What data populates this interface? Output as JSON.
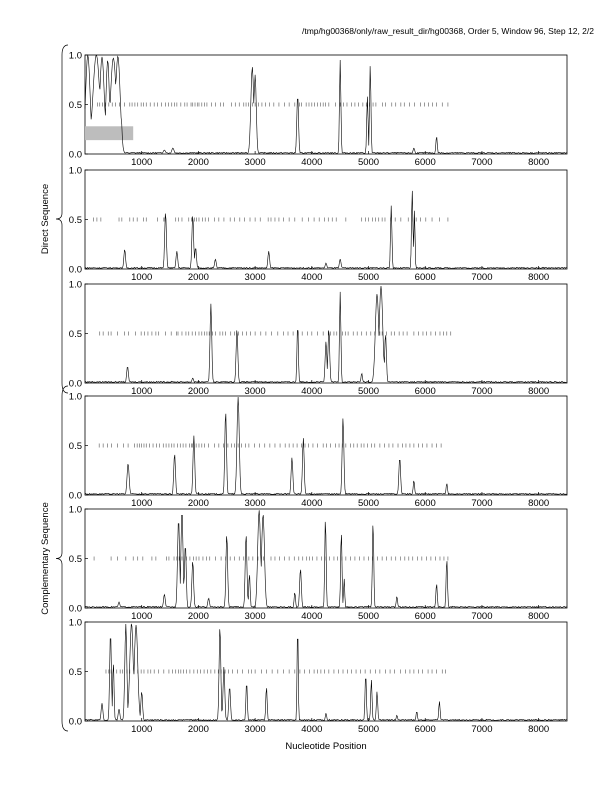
{
  "header": "/tmp/hg00368/only/raw_result_dir/hg00368, Order 5, Window 96, Step 12, 2/2",
  "chart_data": {
    "type": "line",
    "xlabel": "Nucleotide Position",
    "group_labels": [
      "Direct Sequence",
      "Complementary Sequence"
    ],
    "x_ticks": [
      1000,
      2000,
      3000,
      4000,
      5000,
      6000,
      7000,
      8000
    ],
    "y_ticks": [
      0.0,
      0.5,
      1.0
    ],
    "y_tick_labels": [
      "0.0",
      "0.5",
      "1.0"
    ],
    "xlim": [
      0,
      8500
    ],
    "ylim": [
      0,
      1
    ],
    "panels": [
      {
        "group": "Direct Sequence",
        "peaks": [
          [
            50,
            1.0,
            40
          ],
          [
            200,
            1.0,
            60
          ],
          [
            300,
            0.98,
            40
          ],
          [
            400,
            0.95,
            30
          ],
          [
            500,
            0.97,
            50
          ],
          [
            580,
            0.99,
            40
          ],
          [
            640,
            0.35,
            15
          ],
          [
            1400,
            0.04,
            20
          ],
          [
            1550,
            0.06,
            20
          ],
          [
            2950,
            0.88,
            25
          ],
          [
            3000,
            0.8,
            20
          ],
          [
            3750,
            0.6,
            15
          ],
          [
            4500,
            0.95,
            12
          ],
          [
            4980,
            0.58,
            12
          ],
          [
            5030,
            0.9,
            12
          ],
          [
            5800,
            0.06,
            15
          ],
          [
            6200,
            0.18,
            12
          ]
        ],
        "marks": [
          220,
          260,
          310,
          360,
          420,
          480,
          540,
          610,
          700,
          790,
          830,
          880,
          930,
          990,
          1030,
          1080,
          1150,
          1220,
          1280,
          1350,
          1420,
          1470,
          1530,
          1580,
          1620,
          1690,
          1760,
          1800,
          1870,
          1900,
          1940,
          1980,
          2010,
          2060,
          2110,
          2150,
          2230,
          2300,
          2390,
          2440,
          2580,
          2650,
          2720,
          2800,
          2840,
          2880,
          2950,
          3000,
          3060,
          3120,
          3180,
          3250,
          3330,
          3420,
          3520,
          3600,
          3700,
          3780,
          3820,
          3900,
          3950,
          4000,
          4050,
          4100,
          4150,
          4200,
          4240,
          4300,
          4420,
          4500,
          4560,
          4620,
          4700,
          4760,
          4820,
          4900,
          4960,
          5020,
          5080,
          5130,
          5250,
          5300,
          5410,
          5480,
          5570,
          5630,
          5720,
          5810,
          5920,
          5990,
          6060,
          6130,
          6200,
          6300,
          6400
        ],
        "highlight": {
          "x0": 0,
          "x1": 850,
          "y0": 0.14,
          "y1": 0.28
        }
      },
      {
        "group": "Direct Sequence",
        "peaks": [
          [
            700,
            0.2,
            15
          ],
          [
            1420,
            0.58,
            15
          ],
          [
            1620,
            0.18,
            15
          ],
          [
            1900,
            0.55,
            15
          ],
          [
            1950,
            0.22,
            15
          ],
          [
            2300,
            0.1,
            15
          ],
          [
            3240,
            0.18,
            15
          ],
          [
            4250,
            0.06,
            15
          ],
          [
            4500,
            0.1,
            15
          ],
          [
            5400,
            0.64,
            12
          ],
          [
            5770,
            0.8,
            12
          ],
          [
            5810,
            0.6,
            10
          ]
        ],
        "marks": [
          150,
          210,
          280,
          600,
          650,
          790,
          850,
          920,
          1030,
          1080,
          1280,
          1390,
          1410,
          1600,
          1650,
          1710,
          1830,
          1880,
          1930,
          1970,
          2010,
          2070,
          2120,
          2180,
          2280,
          2360,
          2450,
          2560,
          2640,
          2730,
          2810,
          2910,
          3000,
          3090,
          3230,
          3280,
          3350,
          3420,
          3500,
          3600,
          3700,
          3830,
          3940,
          4040,
          4130,
          4220,
          4290,
          4360,
          4430,
          4600,
          4880,
          4950,
          5000,
          5070,
          5120,
          5180,
          5240,
          5290,
          5390,
          5470,
          5570,
          5700,
          5780,
          5840,
          5920,
          6010,
          6120,
          6250,
          6400
        ],
        "highlight": null
      },
      {
        "group": "Direct Sequence",
        "peaks": [
          [
            750,
            0.17,
            15
          ],
          [
            1900,
            0.05,
            15
          ],
          [
            2220,
            0.8,
            15
          ],
          [
            2680,
            0.55,
            15
          ],
          [
            3750,
            0.6,
            12
          ],
          [
            4250,
            0.42,
            15
          ],
          [
            4300,
            0.55,
            15
          ],
          [
            4500,
            0.92,
            12
          ],
          [
            4880,
            0.1,
            12
          ],
          [
            5150,
            0.9,
            30
          ],
          [
            5220,
            0.98,
            30
          ],
          [
            5300,
            0.5,
            15
          ]
        ],
        "marks": [
          260,
          320,
          410,
          460,
          570,
          700,
          770,
          890,
          990,
          1050,
          1110,
          1180,
          1250,
          1300,
          1420,
          1520,
          1610,
          1640,
          1710,
          1780,
          1830,
          1890,
          1950,
          2010,
          2060,
          2110,
          2150,
          2190,
          2250,
          2300,
          2380,
          2430,
          2480,
          2570,
          2640,
          2710,
          2780,
          2850,
          2920,
          3000,
          3100,
          3190,
          3290,
          3400,
          3500,
          3580,
          3670,
          3760,
          3830,
          3920,
          4000,
          4100,
          4200,
          4290,
          4330,
          4390,
          4440,
          4540,
          4590,
          4640,
          4730,
          4800,
          4880,
          4960,
          5040,
          5110,
          5200,
          5240,
          5320,
          5400,
          5460,
          5540,
          5610,
          5680,
          5800,
          5880,
          5960,
          6020,
          6100,
          6180,
          6260,
          6320,
          6380,
          6450
        ],
        "highlight": null
      },
      {
        "group": "Complementary Sequence",
        "peaks": [
          [
            760,
            0.32,
            18
          ],
          [
            1580,
            0.42,
            15
          ],
          [
            1920,
            0.6,
            15
          ],
          [
            2480,
            0.85,
            15
          ],
          [
            2700,
            0.99,
            20
          ],
          [
            3650,
            0.38,
            15
          ],
          [
            3850,
            0.58,
            15
          ],
          [
            4550,
            0.78,
            15
          ],
          [
            5550,
            0.38,
            15
          ],
          [
            5800,
            0.15,
            12
          ],
          [
            6380,
            0.12,
            12
          ]
        ],
        "marks": [
          250,
          320,
          400,
          470,
          570,
          680,
          760,
          870,
          920,
          960,
          1000,
          1040,
          1080,
          1140,
          1200,
          1260,
          1310,
          1380,
          1430,
          1480,
          1530,
          1570,
          1630,
          1680,
          1730,
          1780,
          1840,
          1880,
          1900,
          1960,
          2010,
          2060,
          2110,
          2180,
          2280,
          2360,
          2440,
          2520,
          2580,
          2640,
          2700,
          2760,
          2830,
          2890,
          2990,
          3080,
          3170,
          3260,
          3350,
          3440,
          3530,
          3600,
          3670,
          3740,
          3820,
          3880,
          3940,
          4020,
          4100,
          4200,
          4260,
          4330,
          4420,
          4480,
          4540,
          4600,
          4680,
          4740,
          4800,
          4870,
          4920,
          4980,
          5050,
          5110,
          5200,
          5280,
          5360,
          5430,
          5520,
          5600,
          5660,
          5730,
          5800,
          5880,
          5950,
          6030,
          6120,
          6200,
          6280
        ],
        "highlight": null
      },
      {
        "group": "Complementary Sequence",
        "peaks": [
          [
            600,
            0.06,
            15
          ],
          [
            1400,
            0.14,
            15
          ],
          [
            1650,
            0.9,
            18
          ],
          [
            1710,
            0.99,
            18
          ],
          [
            1770,
            0.65,
            15
          ],
          [
            1900,
            0.48,
            15
          ],
          [
            2180,
            0.1,
            15
          ],
          [
            2500,
            0.75,
            15
          ],
          [
            2840,
            0.75,
            15
          ],
          [
            2900,
            0.35,
            12
          ],
          [
            3070,
            0.99,
            25
          ],
          [
            3140,
            0.95,
            25
          ],
          [
            3700,
            0.16,
            12
          ],
          [
            3800,
            0.4,
            15
          ],
          [
            4240,
            0.92,
            12
          ],
          [
            4520,
            0.78,
            12
          ],
          [
            4570,
            0.3,
            10
          ],
          [
            5080,
            0.88,
            12
          ],
          [
            5500,
            0.12,
            12
          ],
          [
            6200,
            0.25,
            12
          ],
          [
            6380,
            0.5,
            12
          ]
        ],
        "marks": [
          160,
          460,
          570,
          720,
          850,
          930,
          1020,
          1180,
          1250,
          1440,
          1480,
          1570,
          1620,
          1660,
          1710,
          1790,
          1850,
          1910,
          1960,
          2010,
          2080,
          2140,
          2200,
          2300,
          2400,
          2480,
          2560,
          2640,
          2720,
          2800,
          2890,
          2960,
          3050,
          3150,
          3280,
          3350,
          3430,
          3520,
          3600,
          3690,
          3770,
          3840,
          3910,
          3960,
          4010,
          4090,
          4170,
          4250,
          4310,
          4390,
          4450,
          4530,
          4600,
          4680,
          4760,
          4840,
          4920,
          5000,
          5070,
          5160,
          5240,
          5320,
          5400,
          5480,
          5560,
          5640,
          5710,
          5780,
          5860,
          5940,
          6020,
          6100,
          6180,
          6260,
          6330,
          6400
        ],
        "highlight": null
      },
      {
        "group": "Complementary Sequence",
        "peaks": [
          [
            300,
            0.18,
            15
          ],
          [
            450,
            0.9,
            15
          ],
          [
            500,
            0.6,
            12
          ],
          [
            600,
            0.12,
            15
          ],
          [
            720,
            0.98,
            18
          ],
          [
            820,
            0.99,
            30
          ],
          [
            900,
            0.97,
            30
          ],
          [
            1000,
            0.3,
            15
          ],
          [
            2380,
            0.96,
            15
          ],
          [
            2450,
            0.55,
            15
          ],
          [
            2550,
            0.35,
            15
          ],
          [
            2850,
            0.4,
            12
          ],
          [
            3200,
            0.35,
            12
          ],
          [
            3750,
            0.99,
            10
          ],
          [
            4250,
            0.08,
            12
          ],
          [
            4950,
            0.48,
            12
          ],
          [
            5050,
            0.42,
            12
          ],
          [
            5150,
            0.3,
            12
          ],
          [
            5500,
            0.06,
            12
          ],
          [
            5850,
            0.1,
            12
          ],
          [
            6250,
            0.2,
            12
          ]
        ],
        "marks": [
          370,
          420,
          460,
          560,
          620,
          660,
          740,
          790,
          860,
          930,
          990,
          1040,
          1110,
          1160,
          1220,
          1300,
          1390,
          1480,
          1540,
          1600,
          1650,
          1690,
          1740,
          1790,
          1850,
          1920,
          1980,
          2040,
          2100,
          2160,
          2220,
          2290,
          2350,
          2400,
          2470,
          2530,
          2600,
          2690,
          2780,
          2880,
          2940,
          3000,
          3110,
          3200,
          3300,
          3400,
          3500,
          3600,
          3700,
          3790,
          3870,
          3960,
          4040,
          4100,
          4160,
          4220,
          4300,
          4390,
          4470,
          4550,
          4630,
          4700,
          4780,
          4860,
          4940,
          5030,
          5120,
          5200,
          5300,
          5380,
          5460,
          5560,
          5650,
          5730,
          5800,
          5880,
          5950,
          6050,
          6120,
          6200,
          6300,
          6360
        ],
        "highlight": null
      }
    ]
  }
}
